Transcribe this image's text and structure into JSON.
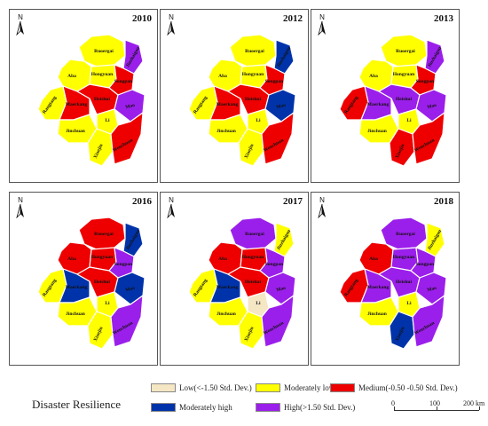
{
  "colors": {
    "low": "#f5e6c4",
    "moderately_low": "#ffff00",
    "medium": "#ee0000",
    "moderately_high": "#0033aa",
    "high": "#9b1fea"
  },
  "north_label": "N",
  "panels": [
    {
      "year": "2010",
      "regions": {
        "Ruoergai": "moderately_low",
        "Jiuzhaigou": "high",
        "Aba": "moderately_low",
        "Hongyuan": "moderately_low",
        "Songpan": "medium",
        "Rangtang": "moderately_low",
        "Maerkang": "medium",
        "Heishui": "medium",
        "Mao": "high",
        "Jinchuan": "moderately_low",
        "Li": "moderately_low",
        "Xiaojin": "moderately_low",
        "Wenchuan": "medium"
      }
    },
    {
      "year": "2012",
      "regions": {
        "Ruoergai": "moderately_low",
        "Jiuzhaigou": "moderately_high",
        "Aba": "moderately_low",
        "Hongyuan": "moderately_low",
        "Songpan": "medium",
        "Rangtang": "moderately_low",
        "Maerkang": "medium",
        "Heishui": "medium",
        "Mao": "moderately_high",
        "Jinchuan": "moderately_low",
        "Li": "moderately_low",
        "Xiaojin": "moderately_low",
        "Wenchuan": "medium"
      }
    },
    {
      "year": "2013",
      "regions": {
        "Ruoergai": "moderately_low",
        "Jiuzhaigou": "high",
        "Aba": "moderately_low",
        "Hongyuan": "moderately_low",
        "Songpan": "medium",
        "Rangtang": "medium",
        "Maerkang": "high",
        "Heishui": "high",
        "Mao": "high",
        "Jinchuan": "moderately_low",
        "Li": "moderately_low",
        "Xiaojin": "medium",
        "Wenchuan": "medium"
      }
    },
    {
      "year": "2016",
      "regions": {
        "Ruoergai": "medium",
        "Jiuzhaigou": "moderately_high",
        "Aba": "medium",
        "Hongyuan": "medium",
        "Songpan": "high",
        "Rangtang": "moderately_low",
        "Maerkang": "moderately_high",
        "Heishui": "medium",
        "Mao": "moderately_high",
        "Jinchuan": "moderately_low",
        "Li": "moderately_low",
        "Xiaojin": "moderately_low",
        "Wenchuan": "high"
      }
    },
    {
      "year": "2017",
      "regions": {
        "Ruoergai": "high",
        "Jiuzhaigou": "moderately_low",
        "Aba": "medium",
        "Hongyuan": "medium",
        "Songpan": "high",
        "Rangtang": "moderately_low",
        "Maerkang": "moderately_high",
        "Heishui": "medium",
        "Mao": "high",
        "Jinchuan": "moderately_low",
        "Li": "low",
        "Xiaojin": "moderately_low",
        "Wenchuan": "high"
      }
    },
    {
      "year": "2018",
      "regions": {
        "Ruoergai": "high",
        "Jiuzhaigou": "moderately_low",
        "Aba": "medium",
        "Hongyuan": "high",
        "Songpan": "high",
        "Rangtang": "medium",
        "Maerkang": "high",
        "Heishui": "high",
        "Mao": "high",
        "Jinchuan": "moderately_low",
        "Li": "moderately_low",
        "Xiaojin": "moderately_high",
        "Wenchuan": "high"
      }
    }
  ],
  "legend": {
    "title": "Disaster Resilience",
    "items": [
      {
        "key": "low",
        "label": "Low(<-1.50 Std. Dev.)"
      },
      {
        "key": "moderately_low",
        "label": "Moderately low"
      },
      {
        "key": "medium",
        "label": "Medium(-0.50 -0.50 Std. Dev.)"
      },
      {
        "key": "moderately_high",
        "label": "Moderately high"
      },
      {
        "key": "high",
        "label": "High(>1.50 Std. Dev.)"
      }
    ]
  },
  "scale_bar": {
    "labels": [
      "0",
      "100",
      "200 km"
    ]
  }
}
